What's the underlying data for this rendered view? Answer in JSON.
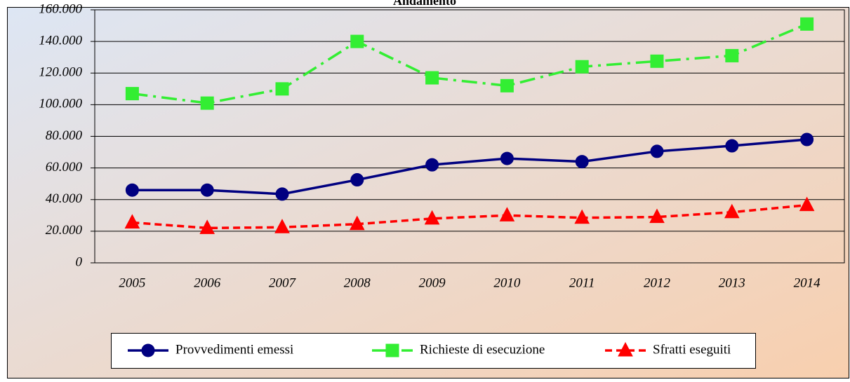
{
  "chart_data": {
    "type": "line",
    "title": "Andamento",
    "categories": [
      "2005",
      "2006",
      "2007",
      "2008",
      "2009",
      "2010",
      "2011",
      "2012",
      "2013",
      "2014"
    ],
    "series": [
      {
        "name": "Provvedimenti emessi",
        "color": "#000080",
        "line_style": "solid",
        "marker": "circle",
        "values": [
          46000,
          46000,
          43500,
          52500,
          62000,
          66000,
          64000,
          70500,
          74000,
          78000
        ]
      },
      {
        "name": "Richieste di esecuzione",
        "color": "#33ee33",
        "line_style": "dashdot",
        "marker": "square",
        "values": [
          107000,
          101000,
          110000,
          140000,
          117000,
          112000,
          124000,
          127500,
          131000,
          151000
        ]
      },
      {
        "name": "Sfratti eseguiti",
        "color": "#ff0000",
        "line_style": "dashed",
        "marker": "triangle",
        "values": [
          25500,
          22000,
          22500,
          24500,
          28000,
          30000,
          28500,
          29000,
          32000,
          36500
        ]
      }
    ],
    "ylim": [
      0,
      160000
    ],
    "yticks": [
      0,
      {
        "value": 20000,
        "label": "20.000"
      },
      {
        "value": 40000,
        "label": "40.000"
      },
      {
        "value": 60000,
        "label": "60.000"
      },
      {
        "value": 80000,
        "label": "80.000"
      },
      {
        "value": 100000,
        "label": "100.000"
      },
      {
        "value": 120000,
        "label": "120.000"
      },
      {
        "value": 140000,
        "label": "140.000"
      },
      {
        "value": 160000,
        "label": "160.000"
      }
    ],
    "grid": true,
    "legend": "bottom"
  }
}
